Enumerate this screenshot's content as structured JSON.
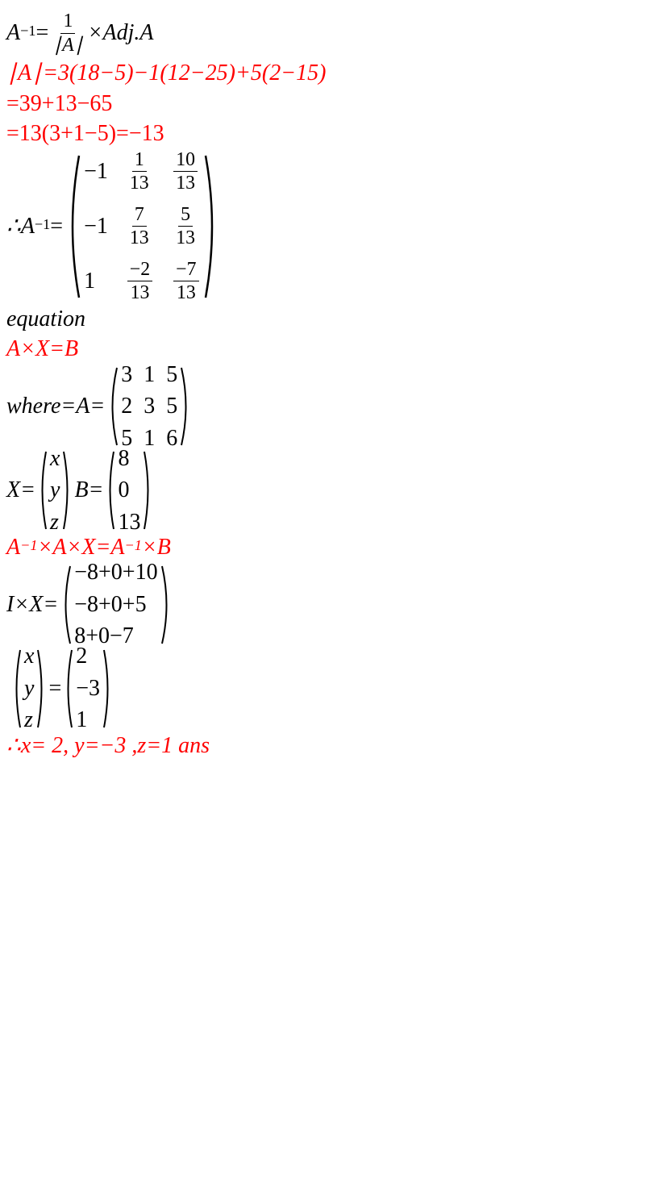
{
  "line1": {
    "pre": " A",
    "exp": "−1",
    "eq": "=",
    "frac_num": "1",
    "frac_den": "∣A∣",
    "post": "×Adj.A"
  },
  "line2": "∣A∣=3(18−5)−1(12−25)+5(2−15)",
  "line3": "=39+13−65",
  "line4": "=13(3+1−5)=−13",
  "line5": {
    "pre": "∴A",
    "exp": "−1",
    "eq": "="
  },
  "bigmatrix": {
    "rows": 3,
    "cols": 3,
    "cells": [
      [
        "−1",
        {
          "num": "1",
          "den": "13"
        },
        {
          "num": "10",
          "den": "13"
        }
      ],
      [
        "−1",
        {
          "num": "7",
          "den": "13"
        },
        {
          "num": "5",
          "den": "13"
        }
      ],
      [
        "1",
        {
          "num": "−2",
          "den": "13"
        },
        {
          "num": "−7",
          "den": "13"
        }
      ]
    ]
  },
  "line6": " equation",
  "line7": "  A×X=B",
  "line8_pre": "where=A=",
  "matrixA": {
    "rows": 3,
    "cols": 3,
    "cells": [
      [
        "3",
        "1",
        "5"
      ],
      [
        "2",
        "3",
        "5"
      ],
      [
        "5",
        "1",
        "6"
      ]
    ]
  },
  "line9_x_pre": "X=",
  "matrixX": {
    "rows": 3,
    "cols": 1,
    "cells": [
      [
        "x"
      ],
      [
        "y"
      ],
      [
        "z"
      ]
    ]
  },
  "line9_b_pre": "  B=",
  "matrixB": {
    "rows": 3,
    "cols": 1,
    "cells": [
      [
        "8"
      ],
      [
        "0"
      ],
      [
        "13"
      ]
    ]
  },
  "line10": {
    "a": "A",
    "e1": "−1",
    "mid": "×A×X=A",
    "e2": "−1",
    "post": "×B"
  },
  "line11_pre": " I×X=",
  "matrixIX": {
    "rows": 3,
    "cols": 1,
    "cells": [
      [
        "−8+0+10"
      ],
      [
        "−8+0+5"
      ],
      [
        "8+0−7"
      ]
    ]
  },
  "line12_left": {
    "rows": 3,
    "cols": 1,
    "cells": [
      [
        "x"
      ],
      [
        "y"
      ],
      [
        "z"
      ]
    ]
  },
  "line12_eq": " =",
  "line12_right": {
    "rows": 3,
    "cols": 1,
    "cells": [
      [
        "2"
      ],
      [
        "−3"
      ],
      [
        "1"
      ]
    ]
  },
  "line13": "∴x= 2, y=−3 ,z=1 ans",
  "colors": {
    "black": "#000000",
    "red": "#ff0000"
  }
}
